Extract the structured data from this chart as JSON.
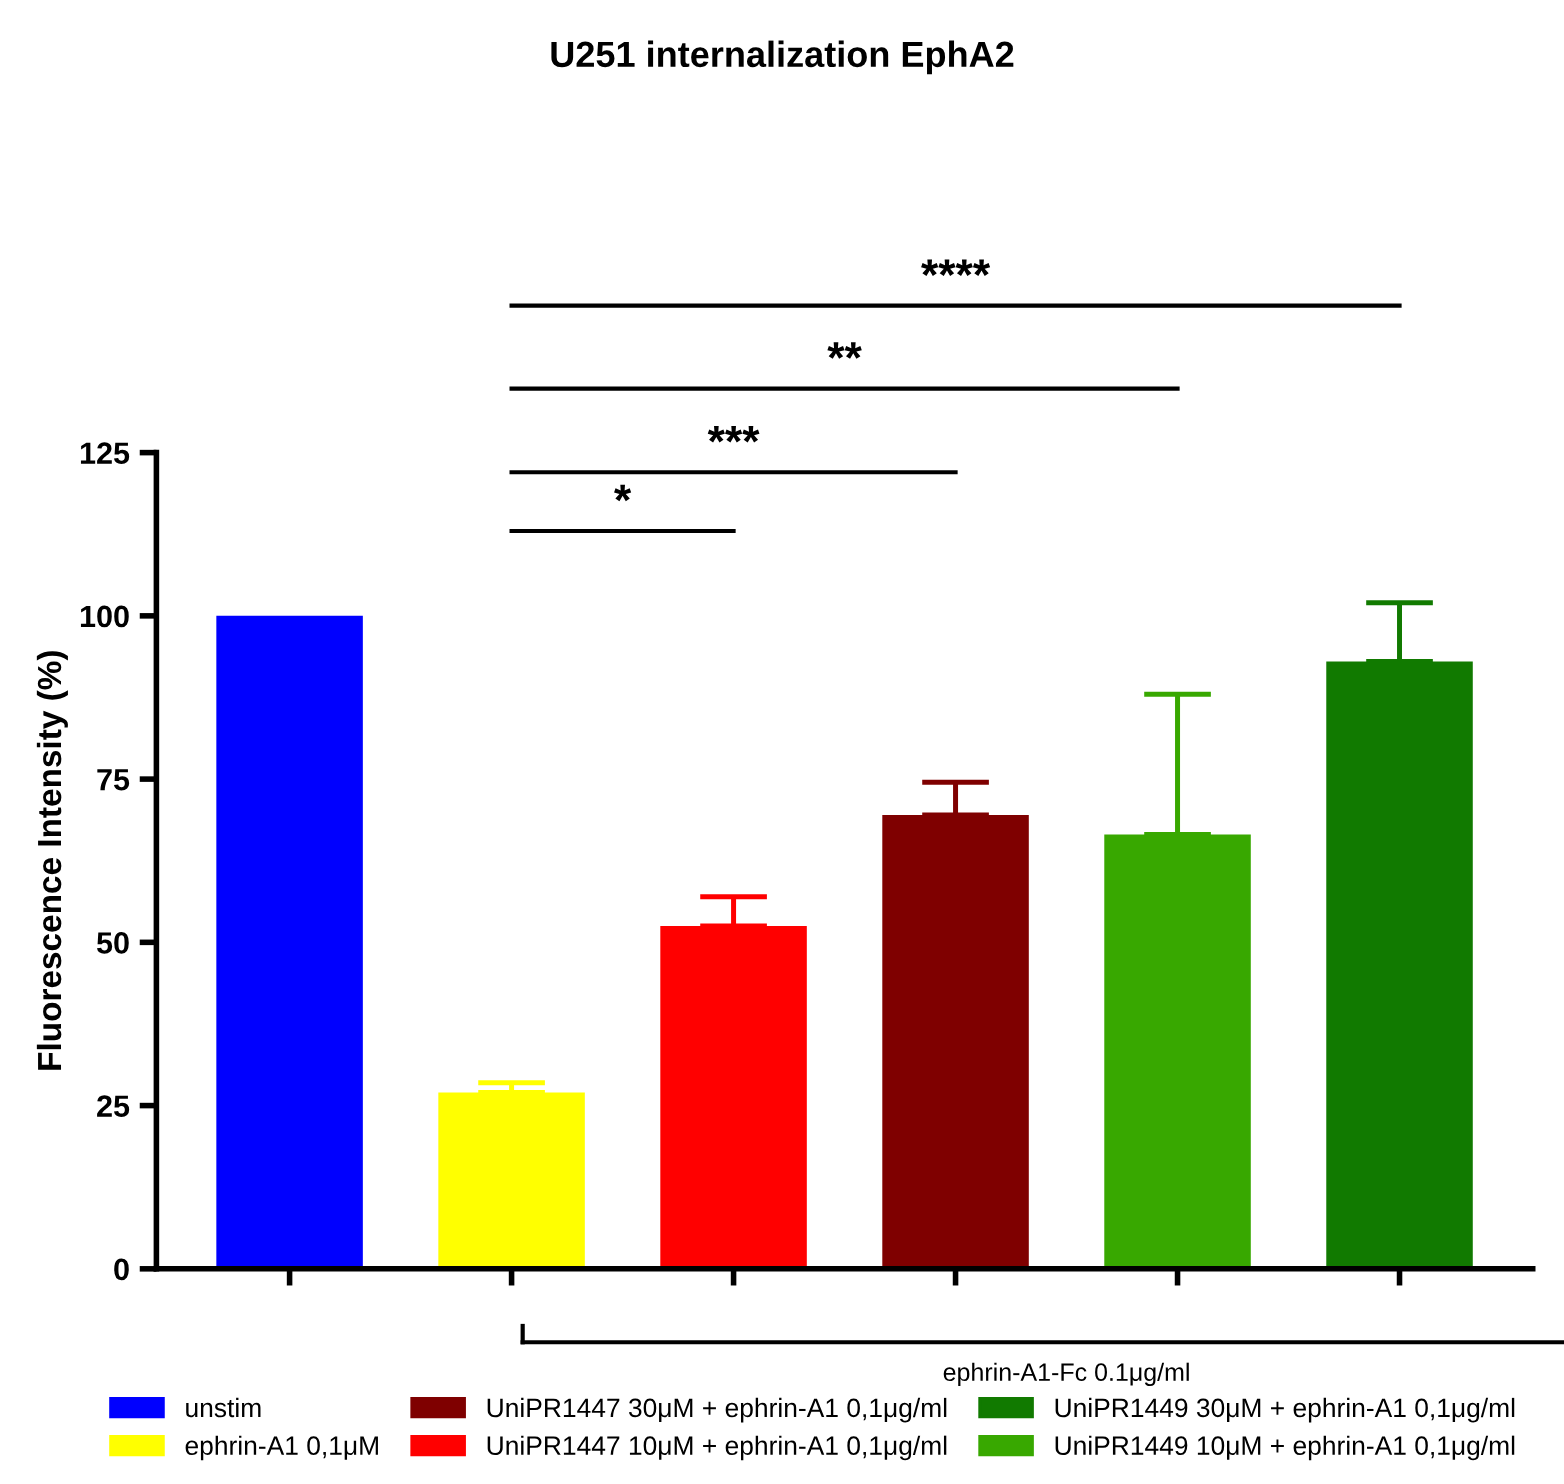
{
  "chart_data": {
    "type": "bar",
    "title": "U251 internalization EphA2",
    "ylabel": "Fluorescence Intensity (%)",
    "categories": [
      null,
      null,
      null,
      null,
      null,
      null
    ],
    "series": [
      {
        "name": "unstim",
        "color": "#0000ff",
        "values": [
          100,
          null,
          null,
          null,
          null,
          null
        ]
      },
      {
        "name": "ephrin-A1 0,1μM",
        "color": "#ffff00",
        "values": [
          null,
          27,
          null,
          null,
          null,
          null
        ],
        "errors": [
          null,
          [
            27,
            28.5
          ],
          null,
          null,
          null,
          null
        ]
      },
      {
        "name": "UniPR1447 30μM + ephrin-A1 0,1μg/ml",
        "color": "#7f0000",
        "values": [
          null,
          null,
          null,
          69.5,
          null,
          null
        ],
        "errors": [
          null,
          null,
          null,
          [
            69.5,
            74.5
          ],
          null,
          null
        ]
      },
      {
        "name": "UniPR1447 10μM + ephrin-A1 0,1μg/ml",
        "color": "#ff0000",
        "values": [
          null,
          null,
          52.5,
          null,
          null,
          null
        ],
        "errors": [
          null,
          null,
          [
            52.5,
            57
          ],
          null,
          null,
          null
        ]
      },
      {
        "name": "UniPR1449 30μM + ephrin-A1 0,1μg/ml",
        "color": "#117a00",
        "values": [
          null,
          null,
          null,
          null,
          null,
          93
        ],
        "errors": [
          null,
          null,
          null,
          null,
          null,
          [
            93,
            102
          ]
        ]
      },
      {
        "name": "UniPR1449 10μM + ephrin-A1 0,1μg/ml",
        "color": "#38a800",
        "values": [
          null,
          null,
          null,
          null,
          66.5,
          null
        ],
        "errors": [
          null,
          null,
          null,
          null,
          [
            66.5,
            88
          ],
          null
        ]
      }
    ],
    "ylim": [
      0,
      125
    ],
    "yticks": [
      0,
      25,
      50,
      75,
      100,
      125
    ],
    "grid": false,
    "legend": "bottom",
    "annotations": [
      "*",
      "***",
      "**",
      "****",
      "ephrin-A1-Fc 0.1μg/ml"
    ]
  }
}
